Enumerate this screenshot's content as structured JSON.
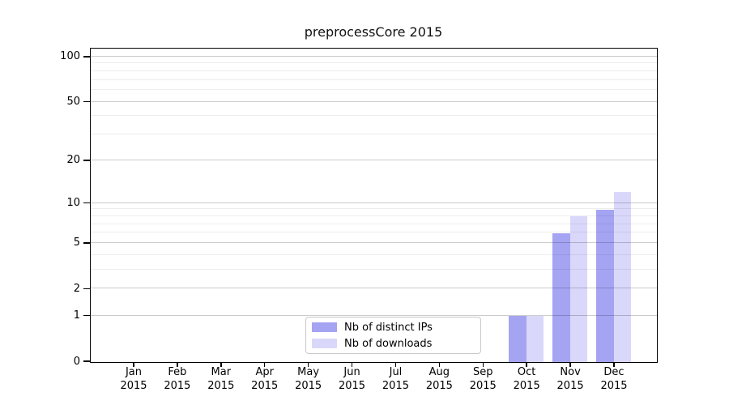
{
  "title": "preprocessCore 2015",
  "chart_data": {
    "type": "bar",
    "title": "preprocessCore 2015",
    "categories": [
      "Jan 2015",
      "Feb 2015",
      "Mar 2015",
      "Apr 2015",
      "May 2015",
      "Jun 2015",
      "Jul 2015",
      "Aug 2015",
      "Sep 2015",
      "Oct 2015",
      "Nov 2015",
      "Dec 2015"
    ],
    "series": [
      {
        "name": "Nb of distinct IPs",
        "color": "#a5a4f3",
        "values": [
          0,
          0,
          0,
          0,
          0,
          0,
          0,
          0,
          0,
          1,
          6,
          9
        ]
      },
      {
        "name": "Nb of downloads",
        "color": "#d9d8fb",
        "values": [
          0,
          0,
          0,
          0,
          0,
          0,
          0,
          0,
          0,
          1,
          8,
          12
        ]
      }
    ],
    "yscale": "log1p",
    "ylim": [
      0,
      113
    ],
    "yticks": [
      0,
      1,
      2,
      5,
      10,
      20,
      50,
      100
    ],
    "yticks_minor": [
      3,
      4,
      6,
      7,
      8,
      9,
      30,
      40,
      60,
      70,
      80,
      90
    ],
    "xlabel": "",
    "ylabel": "",
    "grid": true,
    "legend_position": "inside-bottom-center"
  },
  "colors": {
    "grid_major": "#cccccc",
    "grid_minor": "#ededed",
    "axis": "#000000",
    "legend_border": "#c9c9c9"
  }
}
